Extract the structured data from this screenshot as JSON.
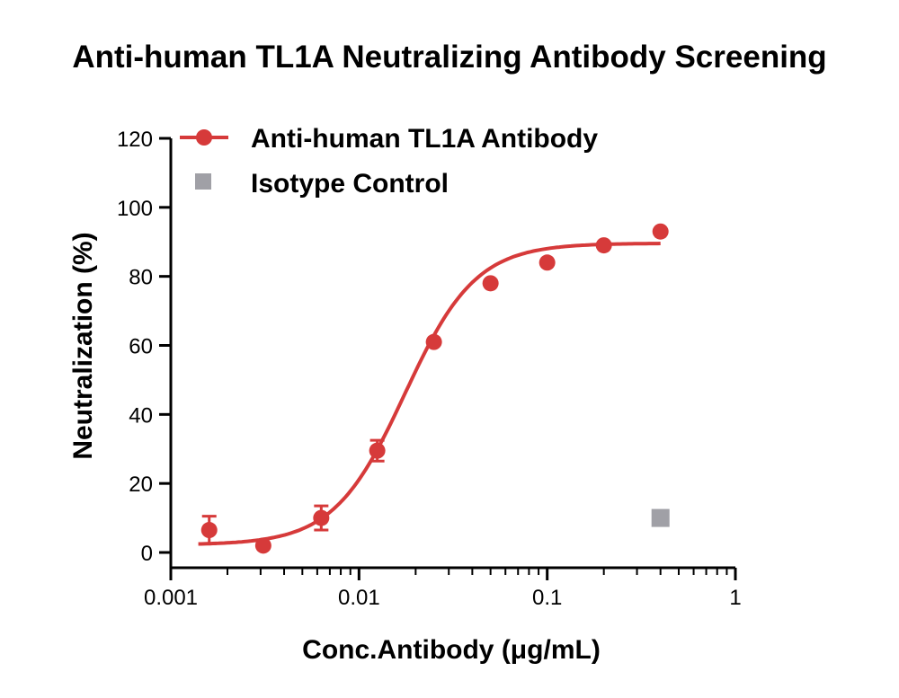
{
  "chart_data": {
    "type": "scatter",
    "title": "Anti-human TL1A Neutralizing Antibody Screening",
    "xlabel": "Conc.Antibody (μg/mL)",
    "ylabel": "Neutralization (%)",
    "x_scale": "log",
    "xlim": [
      0.001,
      1
    ],
    "ylim": [
      0,
      120
    ],
    "x_ticks": [
      0.001,
      0.01,
      0.1,
      1
    ],
    "x_tick_labels": [
      "0.001",
      "0.01",
      "0.1",
      "1"
    ],
    "y_ticks": [
      0,
      20,
      40,
      60,
      80,
      100,
      120
    ],
    "y_tick_labels": [
      "0",
      "20",
      "40",
      "60",
      "80",
      "100",
      "120"
    ],
    "grid": false,
    "legend_position": "top-left",
    "series": [
      {
        "name": "Anti-human TL1A Antibody",
        "color": "#d63a3a",
        "marker": "circle",
        "fit": "four-parameter logistic",
        "x": [
          0.0016,
          0.0031,
          0.0063,
          0.0125,
          0.025,
          0.05,
          0.1,
          0.2,
          0.4
        ],
        "y": [
          6.5,
          2,
          10,
          29.5,
          61,
          78,
          84,
          89,
          93
        ],
        "error": [
          4,
          0,
          3.5,
          3,
          0,
          0,
          0,
          0,
          0
        ]
      },
      {
        "name": "Isotype Control",
        "color": "#a0a0a6",
        "marker": "square",
        "x": [
          0.4
        ],
        "y": [
          10
        ]
      }
    ]
  }
}
